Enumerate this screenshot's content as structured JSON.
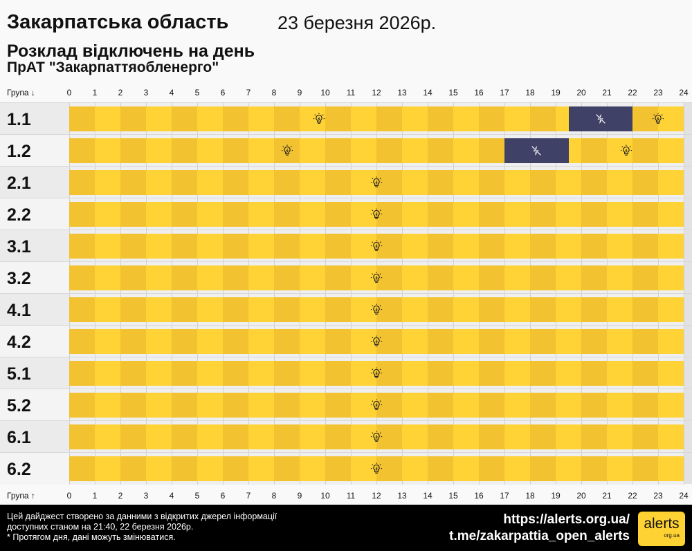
{
  "header": {
    "region": "Закарпатська область",
    "date": "23 березня 2026р.",
    "subtitle": "Розклад відключень на день",
    "company": "ПрАТ \"Закарпаттяобленерго\""
  },
  "axis": {
    "top_label": "Група ↓",
    "bottom_label": "Група ↑",
    "hours": [
      "0",
      "1",
      "2",
      "3",
      "4",
      "5",
      "6",
      "7",
      "8",
      "9",
      "10",
      "11",
      "12",
      "13",
      "14",
      "15",
      "16",
      "17",
      "18",
      "19",
      "20",
      "21",
      "22",
      "23",
      "24"
    ]
  },
  "colors": {
    "on_dark": "#f2c230",
    "on_light": "#ffd335",
    "off": "#3f4266"
  },
  "icons": {
    "on": "lightbulb-icon",
    "off": "power-off-icon"
  },
  "groups": [
    {
      "name": "1.1",
      "outages": [
        [
          19.5,
          22
        ]
      ]
    },
    {
      "name": "1.2",
      "outages": [
        [
          17,
          19.5
        ]
      ]
    },
    {
      "name": "2.1",
      "outages": []
    },
    {
      "name": "2.2",
      "outages": []
    },
    {
      "name": "3.1",
      "outages": []
    },
    {
      "name": "3.2",
      "outages": []
    },
    {
      "name": "4.1",
      "outages": []
    },
    {
      "name": "4.2",
      "outages": []
    },
    {
      "name": "5.1",
      "outages": []
    },
    {
      "name": "5.2",
      "outages": []
    },
    {
      "name": "6.1",
      "outages": []
    },
    {
      "name": "6.2",
      "outages": []
    }
  ],
  "footer": {
    "note1": "Цей дайджест створено за данними з відкритих джерел інформації",
    "note2": "доступних станом на 21:40, 22 березня 2026р.",
    "note3": "* Протягом дня, дані можуть змінюватися.",
    "link1": "https://alerts.org.ua/",
    "link2": "t.me/zakarpattia_open_alerts",
    "logo": "alerts",
    "logo_sub": "org.ua"
  }
}
